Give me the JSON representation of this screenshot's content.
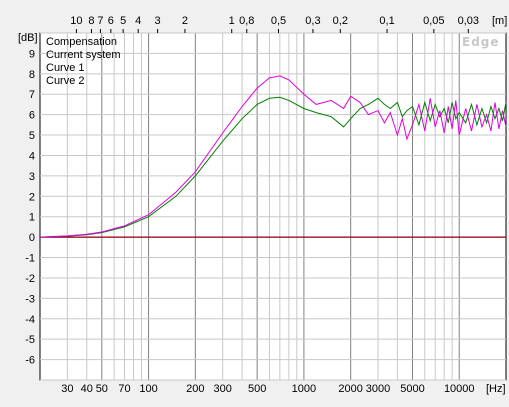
{
  "chart_data": {
    "type": "line",
    "watermark": "Edge",
    "x_unit_label": "[Hz]",
    "y_unit_label": "[dB]",
    "top_unit_label": "[m]",
    "x_scale": "log",
    "xlim": [
      20,
      20000
    ],
    "ylim": [
      -7,
      10
    ],
    "grid": true,
    "legend_position": "top-left",
    "x_tick_labels": [
      {
        "v": 30,
        "t": "30"
      },
      {
        "v": 40,
        "t": "40"
      },
      {
        "v": 50,
        "t": "50"
      },
      {
        "v": 70,
        "t": "70"
      },
      {
        "v": 100,
        "t": "100"
      },
      {
        "v": 200,
        "t": "200"
      },
      {
        "v": 300,
        "t": "300"
      },
      {
        "v": 500,
        "t": "500"
      },
      {
        "v": 1000,
        "t": "1000"
      },
      {
        "v": 2000,
        "t": "2000"
      },
      {
        "v": 3000,
        "t": "3000"
      },
      {
        "v": 5000,
        "t": "5000"
      },
      {
        "v": 10000,
        "t": "10000"
      }
    ],
    "top_tick_labels": [
      {
        "m": 10,
        "t": "10"
      },
      {
        "m": 8,
        "t": "8"
      },
      {
        "m": 7,
        "t": "7"
      },
      {
        "m": 6,
        "t": "6"
      },
      {
        "m": 5,
        "t": "5"
      },
      {
        "m": 4,
        "t": "4"
      },
      {
        "m": 3,
        "t": "3"
      },
      {
        "m": 2,
        "t": "2"
      },
      {
        "m": 1,
        "t": "1"
      },
      {
        "m": 0.8,
        "t": "0,8"
      },
      {
        "m": 0.5,
        "t": "0,5"
      },
      {
        "m": 0.3,
        "t": "0,3"
      },
      {
        "m": 0.2,
        "t": "0,2"
      },
      {
        "m": 0.1,
        "t": "0,1"
      },
      {
        "m": 0.05,
        "t": "0,05"
      },
      {
        "m": 0.03,
        "t": "0,03"
      }
    ],
    "y_ticks": [
      9,
      8,
      7,
      6,
      5,
      4,
      3,
      2,
      1,
      0,
      -1,
      -2,
      -3,
      -4,
      -5,
      -6
    ],
    "series": [
      {
        "name": "Compensation",
        "color": "#0000c0",
        "x": [
          20,
          20000
        ],
        "y": [
          0,
          0
        ]
      },
      {
        "name": "Current system",
        "color": "#c00000",
        "x": [
          20,
          20000
        ],
        "y": [
          0,
          0
        ]
      },
      {
        "name": "Curve 1",
        "color": "#008000",
        "x": [
          20,
          30,
          40,
          50,
          70,
          100,
          150,
          200,
          300,
          400,
          500,
          600,
          700,
          800,
          1000,
          1200,
          1500,
          1800,
          2000,
          2300,
          2600,
          3000,
          3300,
          3600,
          4000,
          4300,
          4600,
          5000,
          5500,
          6000,
          6500,
          7000,
          7500,
          8000,
          8500,
          9000,
          9500,
          10000,
          11000,
          12000,
          13000,
          14000,
          15000,
          16000,
          17000,
          18000,
          19000,
          20000
        ],
        "y": [
          0,
          0.05,
          0.12,
          0.22,
          0.5,
          1.0,
          2.0,
          3.0,
          4.7,
          5.8,
          6.5,
          6.8,
          6.85,
          6.7,
          6.3,
          6.1,
          5.9,
          5.4,
          5.8,
          6.3,
          6.5,
          6.8,
          6.5,
          6.3,
          6.6,
          5.9,
          6.2,
          6.4,
          5.5,
          6.6,
          5.7,
          6.5,
          5.9,
          6.3,
          5.6,
          6.6,
          5.8,
          6.1,
          5.6,
          6.5,
          5.5,
          6.3,
          5.6,
          6.4,
          5.8,
          6.3,
          5.7,
          6.6
        ]
      },
      {
        "name": "Curve 2",
        "color": "#e000e0",
        "x": [
          20,
          30,
          40,
          50,
          70,
          100,
          150,
          200,
          300,
          400,
          500,
          600,
          700,
          800,
          1000,
          1200,
          1500,
          1800,
          2000,
          2300,
          2600,
          3000,
          3300,
          3600,
          4000,
          4300,
          4600,
          5000,
          5500,
          6000,
          6500,
          7000,
          7500,
          8000,
          8500,
          9000,
          9500,
          10000,
          11000,
          12000,
          13000,
          14000,
          15000,
          16000,
          17000,
          18000,
          19000,
          20000
        ],
        "y": [
          0,
          0.06,
          0.14,
          0.25,
          0.55,
          1.1,
          2.2,
          3.2,
          5.1,
          6.4,
          7.3,
          7.8,
          7.9,
          7.7,
          7.0,
          6.5,
          6.7,
          6.3,
          6.9,
          6.6,
          6.0,
          6.2,
          5.6,
          6.1,
          5.0,
          5.8,
          4.8,
          5.5,
          6.5,
          5.2,
          6.8,
          5.4,
          6.2,
          5.1,
          6.4,
          5.3,
          6.7,
          5.0,
          6.3,
          5.2,
          6.5,
          5.4,
          6.0,
          5.2,
          6.6,
          5.3,
          6.2,
          5.4
        ]
      }
    ]
  }
}
